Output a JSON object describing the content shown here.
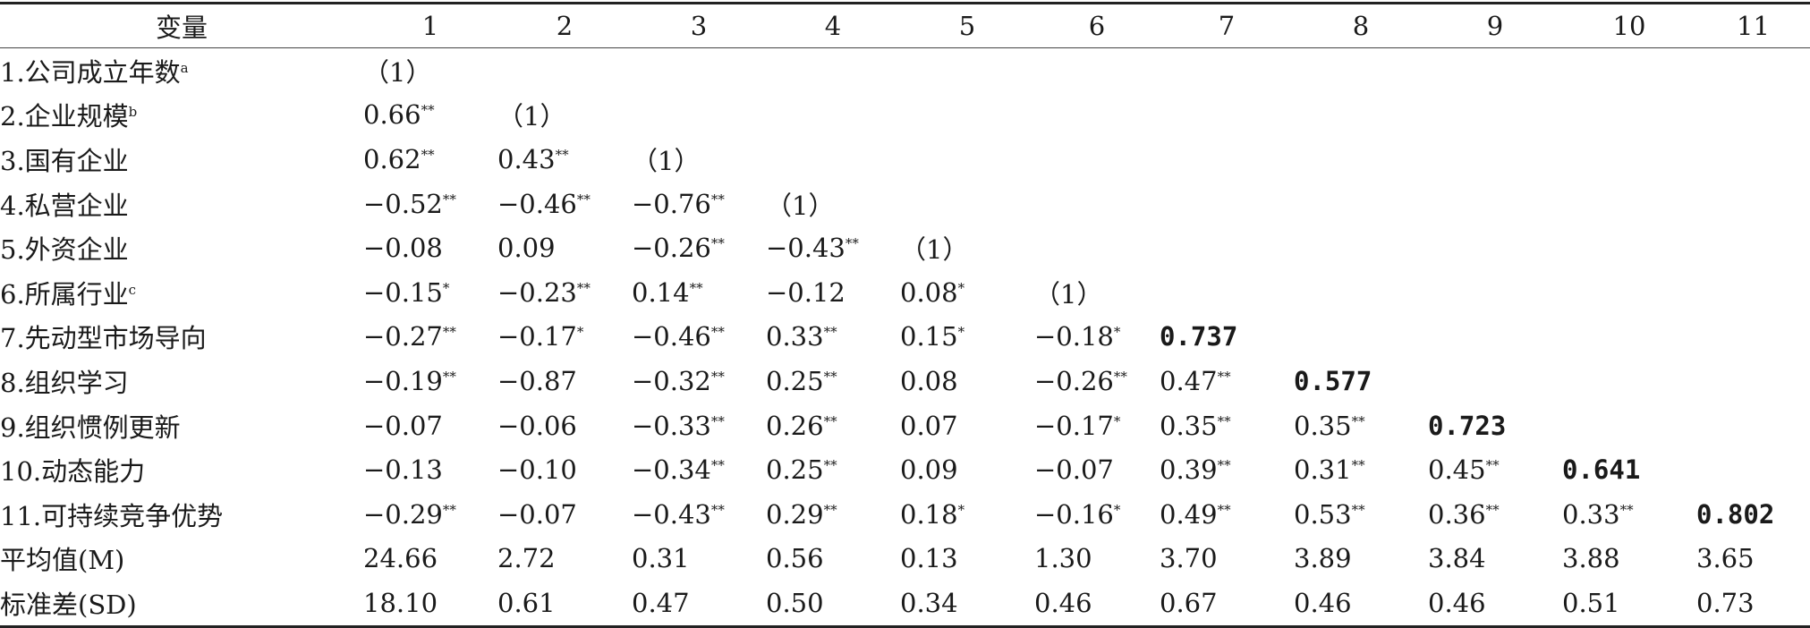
{
  "header": {
    "variable": "变量",
    "columns": [
      "1",
      "2",
      "3",
      "4",
      "5",
      "6",
      "7",
      "8",
      "9",
      "10",
      "11"
    ]
  },
  "rows": [
    {
      "label": "1.公司成立年数",
      "sup": "a",
      "cells": [
        "（1）",
        "",
        "",
        "",
        "",
        "",
        "",
        "",
        "",
        "",
        ""
      ]
    },
    {
      "label": "2.企业规模",
      "sup": "b",
      "cells": [
        "0.66**",
        "（1）",
        "",
        "",
        "",
        "",
        "",
        "",
        "",
        "",
        ""
      ]
    },
    {
      "label": "3.国有企业",
      "sup": "",
      "cells": [
        "0.62**",
        "0.43**",
        "（1）",
        "",
        "",
        "",
        "",
        "",
        "",
        "",
        ""
      ]
    },
    {
      "label": "4.私营企业",
      "sup": "",
      "cells": [
        "−0.52**",
        "−0.46**",
        "−0.76**",
        "（1）",
        "",
        "",
        "",
        "",
        "",
        "",
        ""
      ]
    },
    {
      "label": "5.外资企业",
      "sup": "",
      "cells": [
        "−0.08",
        "0.09",
        "−0.26**",
        "−0.43**",
        "（1）",
        "",
        "",
        "",
        "",
        "",
        ""
      ]
    },
    {
      "label": "6.所属行业",
      "sup": "c",
      "cells": [
        "−0.15*",
        "−0.23**",
        "0.14**",
        "−0.12",
        "0.08*",
        "（1）",
        "",
        "",
        "",
        "",
        ""
      ]
    },
    {
      "label": "7.先动型市场导向",
      "sup": "",
      "cells": [
        "−0.27**",
        "−0.17*",
        "−0.46**",
        "0.33**",
        "0.15*",
        "−0.18*",
        "0.737",
        "",
        "",
        "",
        ""
      ]
    },
    {
      "label": "8.组织学习",
      "sup": "",
      "cells": [
        "−0.19**",
        "−0.87",
        "−0.32**",
        "0.25**",
        "0.08",
        "−0.26**",
        "0.47**",
        "0.577",
        "",
        "",
        ""
      ]
    },
    {
      "label": "9.组织惯例更新",
      "sup": "",
      "cells": [
        "−0.07",
        "−0.06",
        "−0.33**",
        "0.26**",
        "0.07",
        "−0.17*",
        "0.35**",
        "0.35**",
        "0.723",
        "",
        ""
      ]
    },
    {
      "label": "10.动态能力",
      "sup": "",
      "cells": [
        "−0.13",
        "−0.10",
        "−0.34**",
        "0.25**",
        "0.09",
        "−0.07",
        "0.39**",
        "0.31**",
        "0.45**",
        "0.641",
        ""
      ]
    },
    {
      "label": "11.可持续竞争优势",
      "sup": "",
      "cells": [
        "−0.29**",
        "−0.07",
        "−0.43**",
        "0.29**",
        "0.18*",
        "−0.16*",
        "0.49**",
        "0.53**",
        "0.36**",
        "0.33**",
        "0.802"
      ]
    },
    {
      "label": "平均值(M)",
      "sup": "",
      "cells": [
        "24.66",
        "2.72",
        "0.31",
        "0.56",
        "0.13",
        "1.30",
        "3.70",
        "3.89",
        "3.84",
        "3.88",
        "3.65"
      ]
    },
    {
      "label": "标准差(SD)",
      "sup": "",
      "cells": [
        "18.10",
        "0.61",
        "0.47",
        "0.50",
        "0.34",
        "0.46",
        "0.67",
        "0.46",
        "0.46",
        "0.51",
        "0.73"
      ]
    }
  ],
  "bold_diagonal": [
    "0.737",
    "0.577",
    "0.723",
    "0.641",
    "0.802"
  ]
}
